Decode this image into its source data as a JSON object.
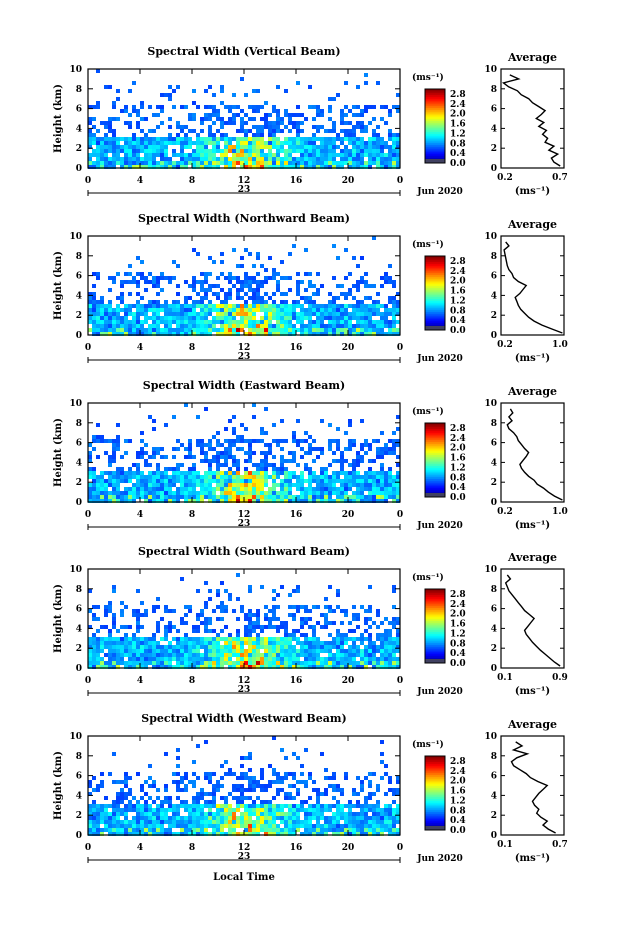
{
  "figure": {
    "xlabel": "Local Time",
    "day_label": "23",
    "month_label": "Jun 2020",
    "ylabel": "Height (km)",
    "unit_label": "(ms⁻¹)",
    "avg_title": "Average"
  },
  "chart_data": [
    {
      "type": "heatmap",
      "title": "Spectral Width (Vertical Beam)",
      "xlabel": "Local Time",
      "ylabel": "Height (km)",
      "xlim": [
        0,
        24
      ],
      "ylim": [
        0,
        10
      ],
      "xticks": [
        "0",
        "4",
        "8",
        "12",
        "16",
        "20",
        "0"
      ],
      "yticks": [
        "0",
        "2",
        "4",
        "6",
        "8",
        "10"
      ],
      "colorbar": {
        "label": "(ms⁻¹)",
        "range": [
          0,
          3
        ],
        "ticks": [
          "0.0",
          "0.4",
          "0.8",
          "1.2",
          "1.6",
          "2.0",
          "2.4",
          "2.8"
        ]
      },
      "profile": {
        "type": "line",
        "title": "Average",
        "xlabel": "(ms⁻¹)",
        "xlim": [
          0.2,
          0.7
        ],
        "xticks": [
          "0.2",
          "0.7"
        ],
        "ylim": [
          0,
          10
        ],
        "yticks": [
          "0",
          "2",
          "4",
          "6",
          "8",
          "10"
        ],
        "height": [
          0.2,
          0.6,
          1.0,
          1.4,
          1.8,
          2.2,
          2.6,
          3.0,
          3.4,
          3.8,
          4.2,
          4.6,
          5.0,
          5.4,
          5.8,
          6.2,
          6.6,
          7.0,
          7.4,
          7.8,
          8.2,
          8.6,
          9.0,
          9.4
        ],
        "avg": [
          0.67,
          0.62,
          0.6,
          0.65,
          0.58,
          0.62,
          0.55,
          0.57,
          0.53,
          0.56,
          0.5,
          0.54,
          0.48,
          0.52,
          0.55,
          0.5,
          0.45,
          0.42,
          0.36,
          0.33,
          0.26,
          0.22,
          0.34,
          0.27
        ]
      }
    },
    {
      "type": "heatmap",
      "title": "Spectral Width (Northward Beam)",
      "xlabel": "Local Time",
      "ylabel": "Height (km)",
      "xlim": [
        0,
        24
      ],
      "ylim": [
        0,
        10
      ],
      "xticks": [
        "0",
        "4",
        "8",
        "12",
        "16",
        "20",
        "0"
      ],
      "yticks": [
        "0",
        "2",
        "4",
        "6",
        "8",
        "10"
      ],
      "colorbar": {
        "label": "(ms⁻¹)",
        "range": [
          0,
          3
        ],
        "ticks": [
          "0.0",
          "0.4",
          "0.8",
          "1.2",
          "1.6",
          "2.0",
          "2.4",
          "2.8"
        ]
      },
      "profile": {
        "type": "line",
        "title": "Average",
        "xlabel": "(ms⁻¹)",
        "xlim": [
          0.2,
          1.0
        ],
        "xticks": [
          "0.2",
          "1.0"
        ],
        "ylim": [
          0,
          10
        ],
        "yticks": [
          "0",
          "2",
          "4",
          "6",
          "8",
          "10"
        ],
        "height": [
          0.2,
          0.6,
          1.0,
          1.4,
          1.8,
          2.2,
          2.6,
          3.0,
          3.4,
          3.8,
          4.2,
          4.6,
          5.0,
          5.4,
          5.8,
          6.2,
          6.6,
          7.0,
          7.4,
          7.8,
          8.2,
          8.6,
          9.0,
          9.4
        ],
        "avg": [
          0.98,
          0.85,
          0.72,
          0.62,
          0.55,
          0.5,
          0.45,
          0.42,
          0.4,
          0.38,
          0.44,
          0.48,
          0.52,
          0.42,
          0.36,
          0.34,
          0.3,
          0.28,
          0.27,
          0.26,
          0.25,
          0.24,
          0.3,
          0.26
        ]
      }
    },
    {
      "type": "heatmap",
      "title": "Spectral Width (Eastward Beam)",
      "xlabel": "Local Time",
      "ylabel": "Height (km)",
      "xlim": [
        0,
        24
      ],
      "ylim": [
        0,
        10
      ],
      "xticks": [
        "0",
        "4",
        "8",
        "12",
        "16",
        "20",
        "0"
      ],
      "yticks": [
        "0",
        "2",
        "4",
        "6",
        "8",
        "10"
      ],
      "colorbar": {
        "label": "(ms⁻¹)",
        "range": [
          0,
          3
        ],
        "ticks": [
          "0.0",
          "0.4",
          "0.8",
          "1.2",
          "1.6",
          "2.0",
          "2.4",
          "2.8"
        ]
      },
      "profile": {
        "type": "line",
        "title": "Average",
        "xlabel": "(ms⁻¹)",
        "xlim": [
          0.2,
          1.0
        ],
        "xticks": [
          "0.2",
          "1.0"
        ],
        "ylim": [
          0,
          10
        ],
        "yticks": [
          "0",
          "2",
          "4",
          "6",
          "8",
          "10"
        ],
        "height": [
          0.2,
          0.6,
          1.0,
          1.4,
          1.8,
          2.2,
          2.6,
          3.0,
          3.4,
          3.8,
          4.2,
          4.6,
          5.0,
          5.4,
          5.8,
          6.2,
          6.6,
          7.0,
          7.4,
          7.8,
          8.2,
          8.6,
          9.0,
          9.4
        ],
        "avg": [
          0.98,
          0.88,
          0.8,
          0.74,
          0.66,
          0.62,
          0.55,
          0.5,
          0.46,
          0.44,
          0.48,
          0.52,
          0.55,
          0.5,
          0.46,
          0.42,
          0.4,
          0.36,
          0.3,
          0.28,
          0.34,
          0.3,
          0.35,
          0.32
        ]
      }
    },
    {
      "type": "heatmap",
      "title": "Spectral Width (Southward Beam)",
      "xlabel": "Local Time",
      "ylabel": "Height (km)",
      "xlim": [
        0,
        24
      ],
      "ylim": [
        0,
        10
      ],
      "xticks": [
        "0",
        "4",
        "8",
        "12",
        "16",
        "20",
        "0"
      ],
      "yticks": [
        "0",
        "2",
        "4",
        "6",
        "8",
        "10"
      ],
      "colorbar": {
        "label": "(ms⁻¹)",
        "range": [
          0,
          3
        ],
        "ticks": [
          "0.0",
          "0.4",
          "0.8",
          "1.2",
          "1.6",
          "2.0",
          "2.4",
          "2.8"
        ]
      },
      "profile": {
        "type": "line",
        "title": "Average",
        "xlabel": "(ms⁻¹)",
        "xlim": [
          0.1,
          0.9
        ],
        "xticks": [
          "0.1",
          "0.9"
        ],
        "ylim": [
          0,
          10
        ],
        "yticks": [
          "0",
          "2",
          "4",
          "6",
          "8",
          "10"
        ],
        "height": [
          0.2,
          0.6,
          1.0,
          1.4,
          1.8,
          2.2,
          2.6,
          3.0,
          3.4,
          3.8,
          4.2,
          4.6,
          5.0,
          5.4,
          5.8,
          6.2,
          6.6,
          7.0,
          7.4,
          7.8,
          8.2,
          8.6,
          9.0,
          9.4
        ],
        "avg": [
          0.85,
          0.78,
          0.72,
          0.66,
          0.6,
          0.55,
          0.5,
          0.46,
          0.42,
          0.4,
          0.44,
          0.48,
          0.52,
          0.46,
          0.4,
          0.36,
          0.32,
          0.28,
          0.24,
          0.2,
          0.18,
          0.16,
          0.22,
          0.18
        ]
      }
    },
    {
      "type": "heatmap",
      "title": "Spectral Width (Westward Beam)",
      "xlabel": "Local Time",
      "ylabel": "Height (km)",
      "xlim": [
        0,
        24
      ],
      "ylim": [
        0,
        10
      ],
      "xticks": [
        "0",
        "4",
        "8",
        "12",
        "16",
        "20",
        "0"
      ],
      "yticks": [
        "0",
        "2",
        "4",
        "6",
        "8",
        "10"
      ],
      "colorbar": {
        "label": "(ms⁻¹)",
        "range": [
          0,
          3
        ],
        "ticks": [
          "0.0",
          "0.4",
          "0.8",
          "1.2",
          "1.6",
          "2.0",
          "2.4",
          "2.8"
        ]
      },
      "profile": {
        "type": "line",
        "title": "Average",
        "xlabel": "(ms⁻¹)",
        "xlim": [
          0.1,
          0.7
        ],
        "xticks": [
          "0.1",
          "0.7"
        ],
        "ylim": [
          0,
          10
        ],
        "yticks": [
          "0",
          "2",
          "4",
          "6",
          "8",
          "10"
        ],
        "height": [
          0.2,
          0.6,
          1.0,
          1.4,
          1.8,
          2.2,
          2.6,
          3.0,
          3.4,
          3.8,
          4.2,
          4.6,
          5.0,
          5.4,
          5.8,
          6.2,
          6.6,
          7.0,
          7.4,
          7.8,
          8.2,
          8.6,
          9.0,
          9.4
        ],
        "avg": [
          0.62,
          0.55,
          0.5,
          0.54,
          0.48,
          0.44,
          0.46,
          0.42,
          0.4,
          0.43,
          0.46,
          0.5,
          0.54,
          0.45,
          0.38,
          0.34,
          0.28,
          0.22,
          0.2,
          0.25,
          0.35,
          0.22,
          0.3,
          0.24
        ]
      }
    }
  ]
}
